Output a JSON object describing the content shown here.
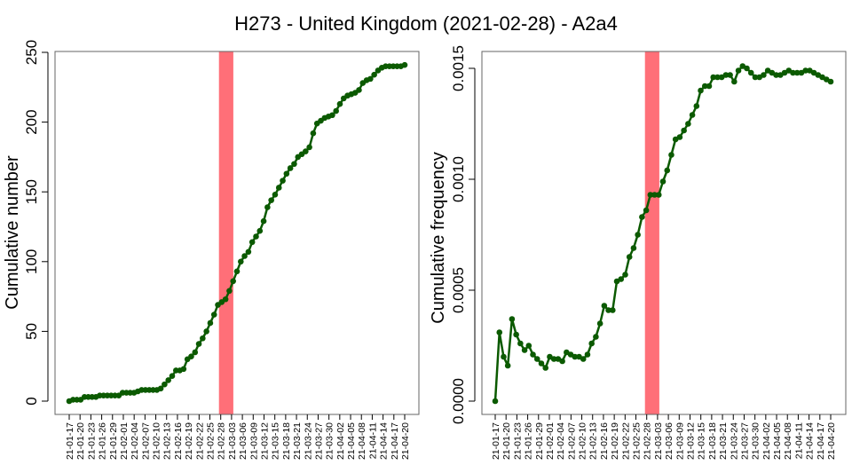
{
  "title": "H273 - United Kingdom (2021-02-28) - A2a4",
  "colors": {
    "line": "#0b5a00",
    "marker": "#0b5a00",
    "highlight": "#ff6f78",
    "axis": "#000000",
    "frame": "#666666"
  },
  "chart_data": [
    {
      "type": "line",
      "ylabel": "Cumulative number",
      "xlabel": "",
      "ylim": [
        0,
        250
      ],
      "yticks": [
        0,
        50,
        100,
        150,
        200,
        250
      ],
      "ytick_labels": [
        "0",
        "50",
        "100",
        "150",
        "200",
        "250"
      ],
      "highlight_range": [
        "21-02-28",
        "21-03-03"
      ],
      "x_tick_labels": [
        "21-01-17",
        "21-01-20",
        "21-01-23",
        "21-01-26",
        "21-01-29",
        "21-02-01",
        "21-02-04",
        "21-02-07",
        "21-02-10",
        "21-02-13",
        "21-02-16",
        "21-02-19",
        "21-02-22",
        "21-02-25",
        "21-02-28",
        "21-03-03",
        "21-03-06",
        "21-03-09",
        "21-03-12",
        "21-03-15",
        "21-03-18",
        "21-03-21",
        "21-03-24",
        "21-03-27",
        "21-03-30",
        "21-04-02",
        "21-04-05",
        "21-04-08",
        "21-04-11",
        "21-04-14",
        "21-04-17",
        "21-04-20"
      ],
      "x_start": "21-01-17",
      "values": [
        0,
        1,
        1,
        1,
        3,
        3,
        3,
        3,
        4,
        4,
        4,
        4,
        4,
        4,
        6,
        6,
        6,
        6,
        7,
        8,
        8,
        8,
        8,
        8,
        9,
        12,
        15,
        18,
        22,
        22,
        23,
        30,
        32,
        35,
        41,
        45,
        50,
        56,
        62,
        69,
        71,
        73,
        79,
        86,
        93,
        100,
        104,
        107,
        114,
        118,
        122,
        129,
        139,
        144,
        148,
        153,
        158,
        163,
        167,
        170,
        175,
        177,
        179,
        182,
        192,
        199,
        201,
        203,
        204,
        205,
        208,
        213,
        217,
        219,
        220,
        221,
        223,
        228,
        230,
        231,
        234,
        237,
        239,
        240,
        240,
        240,
        240,
        240,
        241
      ]
    },
    {
      "type": "line",
      "ylabel": "Cumulative frequency",
      "xlabel": "",
      "ylim": [
        0,
        0.0015
      ],
      "yticks": [
        0,
        0.0005,
        0.001,
        0.0015
      ],
      "ytick_labels": [
        "0.0000",
        "0.0005",
        "0.0010",
        "0.0015"
      ],
      "highlight_range": [
        "21-02-28",
        "21-03-03"
      ],
      "x_tick_labels": [
        "21-01-17",
        "21-01-20",
        "21-01-23",
        "21-01-26",
        "21-01-29",
        "21-02-01",
        "21-02-04",
        "21-02-07",
        "21-02-10",
        "21-02-13",
        "21-02-16",
        "21-02-19",
        "21-02-22",
        "21-02-25",
        "21-02-28",
        "21-03-03",
        "21-03-06",
        "21-03-09",
        "21-03-12",
        "21-03-15",
        "21-03-18",
        "21-03-21",
        "21-03-24",
        "21-03-27",
        "21-03-30",
        "21-04-02",
        "21-04-05",
        "21-04-08",
        "21-04-11",
        "21-04-14",
        "21-04-17",
        "21-04-20"
      ],
      "x_start": "21-01-17",
      "values": [
        0,
        0.00031,
        0.0002,
        0.00016,
        0.00037,
        0.0003,
        0.00026,
        0.00023,
        0.00025,
        0.00021,
        0.00019,
        0.00017,
        0.00015,
        0.0002,
        0.00019,
        0.00019,
        0.00018,
        0.00022,
        0.00021,
        0.0002,
        0.0002,
        0.00019,
        0.00021,
        0.00026,
        0.00029,
        0.00035,
        0.00043,
        0.00041,
        0.00041,
        0.00054,
        0.00055,
        0.00057,
        0.00065,
        0.00069,
        0.00075,
        0.00083,
        0.00086,
        0.00093,
        0.00093,
        0.00093,
        0.00099,
        0.00104,
        0.00111,
        0.00118,
        0.00119,
        0.00122,
        0.00125,
        0.00129,
        0.00133,
        0.0014,
        0.00142,
        0.00142,
        0.00146,
        0.00146,
        0.00146,
        0.00147,
        0.00147,
        0.00144,
        0.00149,
        0.00151,
        0.0015,
        0.00148,
        0.00146,
        0.00146,
        0.00147,
        0.00149,
        0.00148,
        0.00147,
        0.00147,
        0.00148,
        0.00149,
        0.00148,
        0.00148,
        0.00148,
        0.00149,
        0.00149,
        0.00148,
        0.00147,
        0.00146,
        0.00145,
        0.00144
      ]
    }
  ]
}
